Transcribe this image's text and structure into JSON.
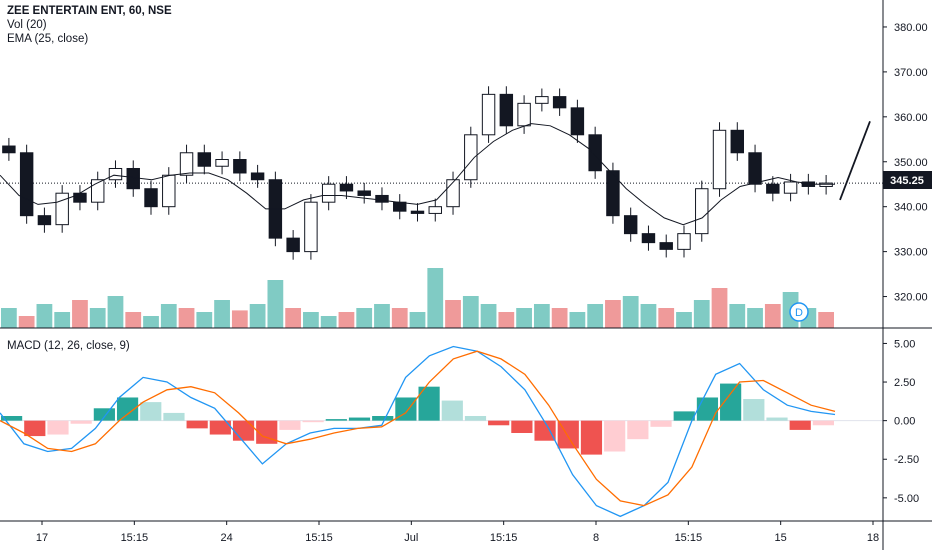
{
  "symbol_title": "ZEE ENTERTAIN ENT, 60, NSE",
  "indicators": {
    "volume_label": "Vol (20)",
    "ema_label": "EMA (25, close)",
    "macd_label": "MACD (12, 26, close, 9)"
  },
  "last_price_label": "345.25",
  "event_marker": "D",
  "chart_data": [
    {
      "type": "candlestick",
      "title": "ZEE ENTERTAIN ENT, 60, NSE",
      "x_ticks": [
        "17",
        "15:15",
        "24",
        "15:15",
        "Jul",
        "15:15",
        "8",
        "15:15",
        "15",
        "18"
      ],
      "y_ticks": [
        "320.00",
        "330.00",
        "340.00",
        "350.00",
        "360.00",
        "370.00",
        "380.00"
      ],
      "ylim": [
        313,
        386
      ],
      "last_price": 345.25,
      "close_path": [
        352.0,
        338.0,
        336.0,
        343.0,
        341.0,
        346.0,
        348.5,
        344.0,
        340.0,
        347.0,
        352.0,
        349.0,
        350.5,
        347.5,
        346.0,
        333.0,
        330.0,
        341.0,
        345.0,
        343.5,
        342.5,
        341.0,
        339.0,
        338.5,
        340.0,
        346.0,
        356.0,
        365.0,
        358.0,
        363.0,
        364.5,
        362.0,
        356.0,
        348.0,
        338.0,
        334.0,
        332.0,
        330.5,
        334.0,
        344.0,
        357.0,
        352.0,
        345.0,
        343.0,
        345.5,
        344.5,
        345.25
      ],
      "ema_series": [
        347.0,
        342.5,
        340.5,
        341.0,
        342.5,
        345.0,
        347.0,
        346.5,
        346.0,
        347.0,
        347.5,
        347.5,
        346.0,
        343.0,
        339.5,
        339.5,
        341.5,
        342.5,
        342.5,
        342.0,
        341.5,
        341.0,
        340.5,
        341.5,
        346.0,
        351.0,
        354.5,
        357.0,
        358.5,
        358.0,
        356.0,
        353.0,
        348.5,
        344.0,
        340.5,
        337.5,
        336.0,
        337.5,
        341.5,
        344.5,
        345.5,
        346.5,
        345.5,
        345.0,
        345.0
      ],
      "projection_line": {
        "from": 341.5,
        "to": 359.0
      }
    },
    {
      "type": "bar",
      "title": "Vol (20)",
      "values": [
        0.25,
        0.15,
        0.3,
        0.2,
        0.35,
        0.25,
        0.4,
        0.2,
        0.15,
        0.3,
        0.25,
        0.2,
        0.35,
        0.22,
        0.3,
        0.6,
        0.25,
        0.2,
        0.15,
        0.2,
        0.25,
        0.3,
        0.25,
        0.2,
        0.75,
        0.35,
        0.4,
        0.3,
        0.2,
        0.25,
        0.3,
        0.25,
        0.2,
        0.3,
        0.35,
        0.4,
        0.3,
        0.25,
        0.2,
        0.35,
        0.5,
        0.3,
        0.25,
        0.3,
        0.45,
        0.25,
        0.2
      ]
    },
    {
      "type": "line+bar",
      "title": "MACD (12, 26, close, 9)",
      "y_ticks": [
        "5.00",
        "2.50",
        "0.00",
        "-2.50",
        "-5.00"
      ],
      "ylim": [
        -6.5,
        6.0
      ],
      "macd": [
        0.5,
        -1.5,
        -2.0,
        -1.8,
        -0.5,
        1.5,
        2.8,
        2.5,
        1.5,
        0.8,
        -1.0,
        -2.8,
        -1.5,
        -0.8,
        -0.5,
        -0.5,
        -0.3,
        2.8,
        4.2,
        4.8,
        4.5,
        3.5,
        2.0,
        -0.5,
        -3.5,
        -5.5,
        -6.2,
        -5.5,
        -4.0,
        0.0,
        3.0,
        3.7,
        2.0,
        1.0,
        0.6,
        0.4
      ],
      "signal": [
        0.0,
        -0.8,
        -1.8,
        -2.0,
        -1.5,
        0.0,
        1.2,
        2.0,
        2.2,
        1.8,
        0.5,
        -1.0,
        -1.5,
        -1.2,
        -0.8,
        -0.5,
        -0.4,
        0.5,
        2.5,
        4.0,
        4.5,
        4.0,
        3.0,
        1.0,
        -1.5,
        -3.8,
        -5.2,
        -5.5,
        -4.8,
        -3.0,
        0.5,
        2.5,
        2.6,
        1.8,
        1.0,
        0.6
      ],
      "histogram": [
        0.3,
        -1.0,
        -0.9,
        -0.2,
        0.8,
        1.5,
        1.2,
        0.5,
        -0.5,
        -0.9,
        -1.3,
        -1.5,
        -0.6,
        -0.1,
        0.1,
        0.2,
        0.3,
        1.5,
        2.2,
        1.3,
        0.3,
        -0.3,
        -0.8,
        -1.3,
        -1.8,
        -2.2,
        -2.0,
        -1.2,
        -0.4,
        0.6,
        1.5,
        2.4,
        1.4,
        0.2,
        -0.6,
        -0.3
      ],
      "colors": {
        "up_strong": "#26a69a",
        "up_weak": "#b2dfdb",
        "down_strong": "#ef5350",
        "down_weak": "#ffcdd2",
        "macd_line": "#2196f3",
        "signal_line": "#ff6d00"
      }
    }
  ]
}
